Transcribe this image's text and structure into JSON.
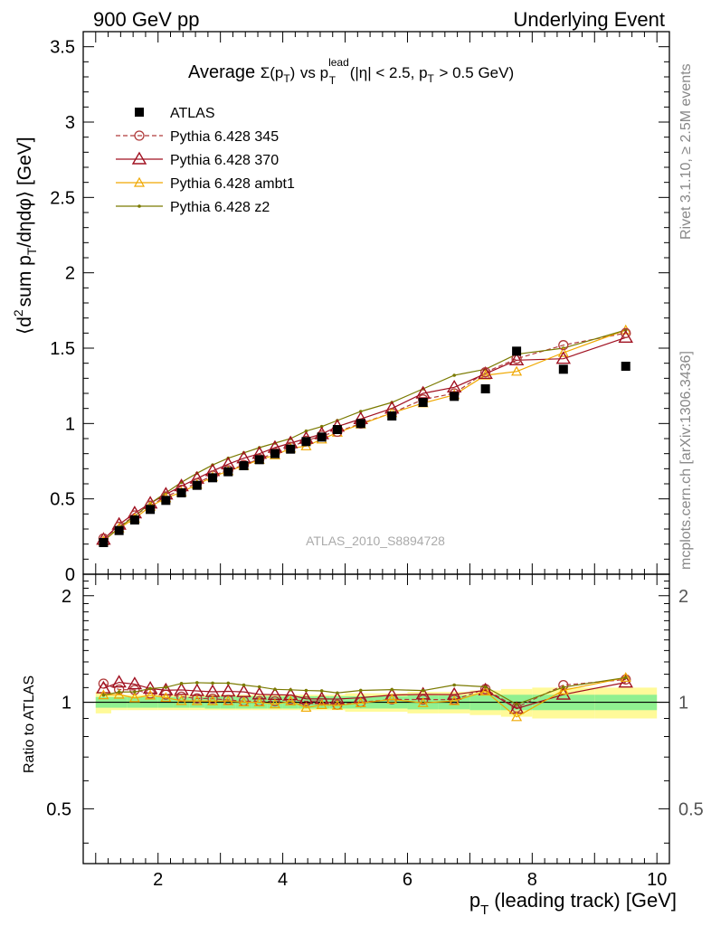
{
  "header": {
    "left": "900 GeV pp",
    "right": "Underlying Event"
  },
  "side_labels": {
    "rivet": "Rivet 3.1.10, ≥ 2.5M events",
    "mcplots": "mcplots.cern.ch [arXiv:1306.3436]"
  },
  "main_plot": {
    "title_average": "Average",
    "title_sigma": "Σ(p",
    "title_sub_T": "T",
    "title_close": ")",
    "title_vs": "vs p",
    "title_sup_lead": "lead",
    "title_cuts": "(|η| < 2.5, p",
    "title_cuts_end": "> 0.5 GeV)",
    "ylabel_pre": "⟨d",
    "ylabel_sup2": "2",
    "ylabel_mid": "sum p",
    "ylabel_post": "/dηdφ⟩ [GeV]",
    "watermark": "ATLAS_2010_S8894728"
  },
  "ratio_plot": {
    "ylabel": "Ratio to ATLAS"
  },
  "xlabel": {
    "pre": "p",
    "sub": "T",
    "post": "(leading track) [GeV]"
  },
  "colors": {
    "data": "#000000",
    "p345": "#b03a3a",
    "p370": "#a01020",
    "ambt1": "#f0a800",
    "z2": "#7a7a00",
    "band_inner": "#90f090",
    "band_outer": "#fffa99"
  },
  "chart_data": {
    "type": "scatter",
    "x_range": [
      0.8,
      10.2
    ],
    "y_range": [
      0,
      3.6
    ],
    "ratio_range": [
      0.35,
      2.3
    ],
    "x_ticks": [
      "2",
      "4",
      "6",
      "8",
      "10"
    ],
    "y_ticks": [
      "0",
      "0.5",
      "1",
      "1.5",
      "2",
      "2.5",
      "3",
      "3.5"
    ],
    "ratio_ticks": [
      "0.5",
      "1",
      "2"
    ],
    "ratio_ticks_right": [
      "0.5",
      "1",
      "2"
    ],
    "x": [
      1.125,
      1.375,
      1.625,
      1.875,
      2.125,
      2.375,
      2.625,
      2.875,
      3.125,
      3.375,
      3.625,
      3.875,
      4.125,
      4.375,
      4.625,
      4.875,
      5.25,
      5.75,
      6.25,
      6.75,
      7.25,
      7.75,
      8.5,
      9.5
    ],
    "bin_edges": [
      1.0,
      1.25,
      1.5,
      1.75,
      2.0,
      2.25,
      2.5,
      2.75,
      3.0,
      3.25,
      3.5,
      3.75,
      4.0,
      4.25,
      4.5,
      4.75,
      5.0,
      5.5,
      6.0,
      6.5,
      7.0,
      7.5,
      8.0,
      9.0,
      10.0
    ],
    "band_inner": [
      0.035,
      0.035,
      0.035,
      0.035,
      0.035,
      0.035,
      0.035,
      0.04,
      0.04,
      0.04,
      0.04,
      0.04,
      0.04,
      0.04,
      0.04,
      0.04,
      0.04,
      0.04,
      0.045,
      0.045,
      0.05,
      0.05,
      0.05,
      0.05
    ],
    "band_outer": [
      0.07,
      0.05,
      0.05,
      0.05,
      0.05,
      0.05,
      0.05,
      0.05,
      0.05,
      0.05,
      0.05,
      0.05,
      0.05,
      0.05,
      0.05,
      0.05,
      0.06,
      0.06,
      0.07,
      0.07,
      0.08,
      0.09,
      0.1,
      0.1
    ],
    "series": [
      {
        "name": "ATLAS",
        "key": "data",
        "marker": "square",
        "values": [
          0.21,
          0.29,
          0.36,
          0.43,
          0.49,
          0.54,
          0.59,
          0.64,
          0.68,
          0.72,
          0.76,
          0.8,
          0.83,
          0.88,
          0.91,
          0.96,
          1.0,
          1.05,
          1.14,
          1.18,
          1.23,
          1.48,
          1.36,
          1.38
        ]
      },
      {
        "name": "Pythia 6.428 345",
        "key": "p345",
        "marker": "circle",
        "dashed": true,
        "values": [
          0.237,
          0.315,
          0.39,
          0.455,
          0.515,
          0.56,
          0.605,
          0.655,
          0.69,
          0.725,
          0.765,
          0.805,
          0.845,
          0.885,
          0.92,
          0.945,
          1.0,
          1.07,
          1.16,
          1.2,
          1.34,
          1.43,
          1.52,
          1.6
        ]
      },
      {
        "name": "Pythia 6.428 370",
        "key": "p370",
        "marker": "triangle",
        "values": [
          0.23,
          0.33,
          0.405,
          0.47,
          0.53,
          0.585,
          0.635,
          0.685,
          0.73,
          0.77,
          0.8,
          0.84,
          0.87,
          0.9,
          0.93,
          0.98,
          1.03,
          1.1,
          1.2,
          1.24,
          1.33,
          1.42,
          1.43,
          1.57
        ]
      },
      {
        "name": "Pythia 6.428 ambt1",
        "key": "ambt1",
        "marker": "triangle-open",
        "values": [
          0.22,
          0.305,
          0.37,
          0.45,
          0.505,
          0.545,
          0.595,
          0.645,
          0.685,
          0.72,
          0.76,
          0.79,
          0.835,
          0.85,
          0.895,
          0.94,
          0.995,
          1.07,
          1.135,
          1.19,
          1.32,
          1.345,
          1.47,
          1.62
        ]
      },
      {
        "name": "Pythia 6.428 z2",
        "key": "z2",
        "marker": "dot",
        "values": [
          0.22,
          0.31,
          0.385,
          0.47,
          0.54,
          0.61,
          0.67,
          0.725,
          0.77,
          0.805,
          0.84,
          0.87,
          0.9,
          0.95,
          0.98,
          1.02,
          1.08,
          1.14,
          1.23,
          1.32,
          1.36,
          1.46,
          1.5,
          1.62
        ]
      }
    ]
  }
}
